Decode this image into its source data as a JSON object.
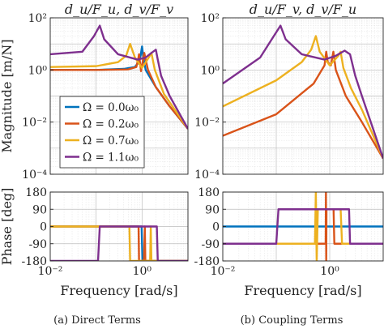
{
  "colors": {
    "series_0": "#0072BD",
    "series_1": "#D95319",
    "series_2": "#EDB120",
    "series_3": "#7E2F8E"
  },
  "legend": [
    "Ω = 0.0ω₀",
    "Ω = 0.2ω₀",
    "Ω = 0.7ω₀",
    "Ω = 1.1ω₀"
  ],
  "captions": {
    "left": "(a)  Direct Terms",
    "right": "(b)  Coupling Terms"
  },
  "chart_data": [
    {
      "type": "line",
      "panel": "direct-magnitude",
      "title": "d_u/F_u, d_v/F_v",
      "ylabel": "Magnitude [m/N]",
      "xscale": "log",
      "yscale": "log",
      "xlim": [
        0.01,
        10
      ],
      "ylim": [
        0.0001,
        100
      ],
      "yticks": [
        100,
        1,
        0.01,
        0.0001
      ],
      "ytick_labels": [
        "10²",
        "10⁰",
        "10⁻²",
        "10⁻⁴"
      ],
      "grid": true,
      "legend_position": "lower-left",
      "series": [
        {
          "name": "Ω = 0.0ω₀",
          "x": [
            0.01,
            0.1,
            0.4,
            0.7,
            0.85,
            0.93,
            1.0,
            1.07,
            1.2,
            2.0,
            4.0,
            10.0
          ],
          "y": [
            1.0,
            1.0,
            1.1,
            1.3,
            2.0,
            3.5,
            8.0,
            3.0,
            1.0,
            0.22,
            0.04,
            0.0055
          ]
        },
        {
          "name": "Ω = 0.2ω₀",
          "x": [
            0.01,
            0.1,
            0.5,
            0.75,
            0.82,
            0.86,
            0.95,
            1.12,
            1.2,
            1.35,
            2.0,
            4.0,
            10.0
          ],
          "y": [
            1.0,
            1.0,
            1.05,
            1.3,
            2.5,
            4.0,
            0.9,
            4.5,
            2.5,
            1.0,
            0.22,
            0.04,
            0.0055
          ]
        },
        {
          "name": "Ω = 0.7ω₀",
          "x": [
            0.01,
            0.1,
            0.3,
            0.45,
            0.55,
            0.7,
            1.0,
            1.4,
            1.6,
            1.9,
            3.0,
            10.0
          ],
          "y": [
            1.3,
            1.4,
            2.0,
            3.5,
            10.0,
            3.0,
            1.2,
            3.0,
            4.5,
            1.0,
            0.12,
            0.0055
          ]
        },
        {
          "name": "Ω = 1.1ω₀",
          "x": [
            0.01,
            0.05,
            0.09,
            0.12,
            0.15,
            0.3,
            0.8,
            1.2,
            1.6,
            2.0,
            2.2,
            2.6,
            4.0,
            10.0
          ],
          "y": [
            4.0,
            5.0,
            20.0,
            50.0,
            15.0,
            4.0,
            2.5,
            3.0,
            4.5,
            6.0,
            2.5,
            0.6,
            0.1,
            0.0055
          ]
        }
      ]
    },
    {
      "type": "line",
      "panel": "coupling-magnitude",
      "title": "d_u/F_v, d_v/F_u",
      "xscale": "log",
      "yscale": "log",
      "xlim": [
        0.01,
        10
      ],
      "ylim": [
        0.0001,
        100
      ],
      "yticks": [
        100,
        1,
        0.01,
        0.0001
      ],
      "ytick_labels": [
        "10²",
        "10⁰",
        "10⁻²",
        "10⁻⁴"
      ],
      "grid": true,
      "series": [
        {
          "name": "Ω = 0.2ω₀",
          "x": [
            0.01,
            0.1,
            0.5,
            0.8,
            0.86,
            0.92,
            1.05,
            1.17,
            1.3,
            2.0,
            4.0,
            10.0
          ],
          "y": [
            0.003,
            0.02,
            0.3,
            1.5,
            5.0,
            2.0,
            1.5,
            5.0,
            1.0,
            0.1,
            0.01,
            0.0004
          ]
        },
        {
          "name": "Ω = 0.7ω₀",
          "x": [
            0.01,
            0.1,
            0.3,
            0.45,
            0.55,
            0.65,
            1.0,
            1.45,
            1.6,
            1.8,
            2.5,
            4.0,
            10.0
          ],
          "y": [
            0.04,
            0.4,
            2.0,
            6.0,
            20.0,
            5.0,
            1.5,
            3.5,
            5.0,
            1.2,
            0.2,
            0.03,
            0.0004
          ]
        },
        {
          "name": "Ω = 1.1ω₀",
          "x": [
            0.01,
            0.05,
            0.09,
            0.12,
            0.15,
            0.3,
            0.8,
            1.3,
            1.9,
            2.4,
            3.0,
            4.0,
            10.0
          ],
          "y": [
            0.3,
            3.0,
            20.0,
            50.0,
            15.0,
            4.0,
            2.5,
            3.5,
            5.5,
            4.0,
            0.6,
            0.1,
            0.0004
          ]
        }
      ]
    },
    {
      "type": "line",
      "panel": "direct-phase",
      "ylabel": "Phase [deg]",
      "xlabel": "Frequency [rad/s]",
      "xscale": "log",
      "xlim": [
        0.01,
        10
      ],
      "ylim": [
        -180,
        180
      ],
      "yticks": [
        180,
        90,
        0,
        -90,
        -180
      ],
      "ytick_labels": [
        "180",
        "90",
        "0",
        "-90",
        "-180"
      ],
      "xticks": [
        0.01,
        1
      ],
      "xtick_labels": [
        "10⁻²",
        "10⁰"
      ],
      "grid": true,
      "series": [
        {
          "name": "Ω = 0.0ω₀",
          "x": [
            0.01,
            0.95,
            0.98,
            1.0,
            1.02,
            1.06,
            10.0
          ],
          "y": [
            0,
            0,
            0,
            -90,
            -180,
            -180,
            -180
          ]
        },
        {
          "name": "Ω = 0.2ω₀",
          "x": [
            0.01,
            0.8,
            0.84,
            0.86,
            0.9,
            1.1,
            1.15,
            1.18,
            1.25,
            10.0
          ],
          "y": [
            0,
            0,
            0,
            -180,
            -180,
            -180,
            0,
            -180,
            -180,
            -180
          ]
        },
        {
          "name": "Ω = 0.7ω₀",
          "x": [
            0.01,
            0.5,
            0.53,
            0.55,
            0.58,
            1.5,
            1.55,
            1.6,
            1.7,
            10.0
          ],
          "y": [
            0,
            0,
            0,
            -180,
            -180,
            -180,
            0,
            -180,
            -180,
            -180
          ]
        },
        {
          "name": "Ω = 1.1ω₀",
          "x": [
            0.01,
            0.1,
            0.11,
            0.12,
            0.13,
            2.0,
            2.1,
            2.2,
            2.3,
            10.0
          ],
          "y": [
            -180,
            -180,
            -180,
            0,
            0,
            0,
            0,
            -180,
            -180,
            -180
          ]
        }
      ]
    },
    {
      "type": "line",
      "panel": "coupling-phase",
      "xlabel": "Frequency [rad/s]",
      "xscale": "log",
      "xlim": [
        0.01,
        10
      ],
      "ylim": [
        -180,
        180
      ],
      "yticks": [
        180,
        90,
        0,
        -90,
        -180
      ],
      "ytick_labels": [
        "180",
        "90",
        "0",
        "-90",
        "-180"
      ],
      "xticks": [
        0.01,
        1
      ],
      "xtick_labels": [
        "10⁻²",
        "10⁰"
      ],
      "grid": true,
      "series": [
        {
          "name": "Ω = 0.0ω₀",
          "x": [
            0.01,
            10.0
          ],
          "y": [
            0,
            0
          ]
        },
        {
          "name": "Ω = 0.2ω₀",
          "x": [
            0.01,
            0.8,
            0.84,
            0.85,
            0.86,
            0.87,
            0.88,
            1.15,
            1.18,
            1.22,
            10.0
          ],
          "y": [
            -90,
            -90,
            -90,
            180,
            -180,
            90,
            90,
            90,
            90,
            -90,
            -90
          ]
        },
        {
          "name": "Ω = 0.7ω₀",
          "x": [
            0.01,
            0.5,
            0.53,
            0.55,
            0.57,
            0.6,
            1.5,
            1.6,
            1.7,
            10.0
          ],
          "y": [
            -90,
            -90,
            -90,
            180,
            -180,
            90,
            90,
            90,
            -90,
            -90
          ]
        },
        {
          "name": "Ω = 1.1ω₀",
          "x": [
            0.01,
            0.1,
            0.11,
            0.12,
            2.2,
            2.3,
            2.4,
            10.0
          ],
          "y": [
            -90,
            -90,
            90,
            90,
            90,
            90,
            -90,
            -90
          ]
        }
      ]
    }
  ]
}
